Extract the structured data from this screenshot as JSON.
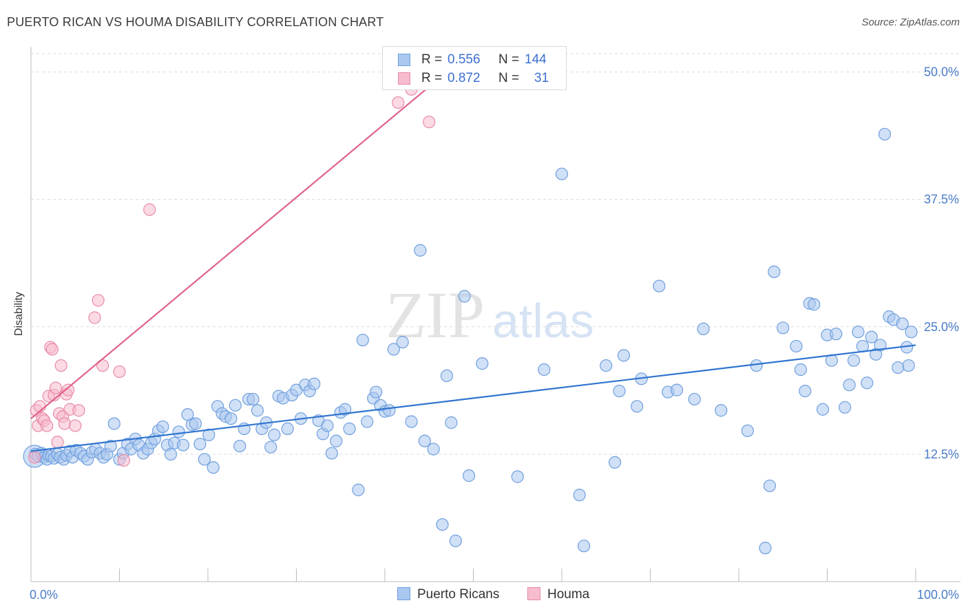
{
  "title": "PUERTO RICAN VS HOUMA DISABILITY CORRELATION CHART",
  "source": "Source: ZipAtlas.com",
  "colors": {
    "blue_fill": "#aac7ef",
    "blue_stroke": "#6f9fde",
    "blue_line": "#2f74d0",
    "pink_fill": "#f7bccd",
    "pink_stroke": "#e88aa6",
    "pink_line": "#e0618a",
    "axis_text": "#4a7cc9",
    "grid": "#d9d9d9"
  },
  "legend": {
    "rows": [
      {
        "r_label": "R =",
        "r_value": "0.556",
        "n_label": "N =",
        "n_value": "144",
        "series": "Puerto Ricans"
      },
      {
        "r_label": "R =",
        "r_value": "0.872",
        "n_label": "N =",
        "n_value": "31",
        "series": "Houma"
      }
    ]
  },
  "bottom_legend": [
    "Puerto Ricans",
    "Houma"
  ],
  "chart_data": {
    "type": "scatter",
    "title": "PUERTO RICAN VS HOUMA DISABILITY CORRELATION CHART",
    "xlabel": "",
    "ylabel": "Disability",
    "xlim": [
      0,
      100
    ],
    "ylim": [
      0,
      52
    ],
    "x_tick_labels": [
      "0.0%",
      "100.0%"
    ],
    "y_ticks": [
      12.5,
      25.0,
      37.5,
      50.0
    ],
    "y_tick_labels": [
      "12.5%",
      "25.0%",
      "37.5%",
      "50.0%"
    ],
    "grid": true,
    "legend_position": "top-center",
    "watermark": {
      "text1": "ZIP",
      "text2": "atlas"
    },
    "series": [
      {
        "name": "Puerto Ricans",
        "r": 0.556,
        "n": 144,
        "trend": {
          "x": [
            0,
            100
          ],
          "y": [
            12.8,
            23.2
          ]
        },
        "points": [
          [
            0.5,
            12.5
          ],
          [
            0.8,
            12.3
          ],
          [
            1.2,
            12.6
          ],
          [
            1.5,
            12.2
          ],
          [
            1.8,
            12.0
          ],
          [
            2.0,
            12.4
          ],
          [
            2.3,
            12.3
          ],
          [
            2.6,
            12.1
          ],
          [
            3.0,
            12.5
          ],
          [
            3.3,
            12.2
          ],
          [
            3.7,
            12.0
          ],
          [
            4.0,
            12.4
          ],
          [
            4.4,
            12.8
          ],
          [
            4.7,
            12.2
          ],
          [
            5.1,
            12.9
          ],
          [
            5.6,
            12.6
          ],
          [
            6.0,
            12.3
          ],
          [
            6.4,
            12.0
          ],
          [
            6.9,
            12.7
          ],
          [
            7.3,
            13.0
          ],
          [
            7.8,
            12.6
          ],
          [
            8.2,
            12.2
          ],
          [
            8.6,
            12.5
          ],
          [
            9.0,
            13.3
          ],
          [
            9.4,
            15.5
          ],
          [
            10.0,
            12.0
          ],
          [
            10.4,
            12.6
          ],
          [
            10.9,
            13.5
          ],
          [
            11.3,
            13.0
          ],
          [
            11.8,
            14.0
          ],
          [
            12.2,
            13.4
          ],
          [
            12.7,
            12.6
          ],
          [
            13.2,
            13.0
          ],
          [
            13.6,
            13.6
          ],
          [
            14.0,
            14.0
          ],
          [
            14.4,
            14.8
          ],
          [
            14.9,
            15.2
          ],
          [
            15.4,
            13.4
          ],
          [
            15.8,
            12.5
          ],
          [
            16.2,
            13.6
          ],
          [
            16.7,
            14.7
          ],
          [
            17.2,
            13.4
          ],
          [
            17.7,
            16.4
          ],
          [
            18.2,
            15.4
          ],
          [
            18.6,
            15.5
          ],
          [
            19.1,
            13.5
          ],
          [
            19.6,
            12.0
          ],
          [
            20.1,
            14.4
          ],
          [
            20.6,
            11.2
          ],
          [
            21.1,
            17.2
          ],
          [
            21.6,
            16.5
          ],
          [
            22.0,
            16.2
          ],
          [
            22.6,
            16.0
          ],
          [
            23.1,
            17.3
          ],
          [
            23.6,
            13.3
          ],
          [
            24.1,
            15.0
          ],
          [
            24.6,
            17.9
          ],
          [
            25.1,
            17.9
          ],
          [
            25.6,
            16.8
          ],
          [
            26.1,
            15.0
          ],
          [
            26.6,
            15.6
          ],
          [
            27.1,
            13.2
          ],
          [
            27.5,
            14.4
          ],
          [
            28.0,
            18.2
          ],
          [
            28.5,
            18.0
          ],
          [
            29.0,
            15.0
          ],
          [
            29.5,
            18.3
          ],
          [
            30.0,
            18.8
          ],
          [
            30.5,
            16.0
          ],
          [
            31.0,
            19.3
          ],
          [
            31.5,
            18.7
          ],
          [
            32.0,
            19.4
          ],
          [
            32.5,
            15.8
          ],
          [
            33.0,
            14.5
          ],
          [
            33.5,
            15.3
          ],
          [
            34.0,
            12.6
          ],
          [
            34.5,
            13.8
          ],
          [
            35.0,
            16.6
          ],
          [
            35.5,
            16.9
          ],
          [
            36.0,
            15.0
          ],
          [
            37.0,
            9.0
          ],
          [
            37.5,
            23.7
          ],
          [
            38.0,
            15.7
          ],
          [
            38.7,
            18.0
          ],
          [
            39.0,
            18.6
          ],
          [
            39.5,
            17.3
          ],
          [
            40.0,
            16.7
          ],
          [
            40.5,
            16.8
          ],
          [
            41.0,
            22.8
          ],
          [
            42.0,
            23.5
          ],
          [
            43.0,
            15.7
          ],
          [
            44.0,
            32.5
          ],
          [
            44.5,
            13.8
          ],
          [
            45.5,
            13.0
          ],
          [
            46.5,
            5.6
          ],
          [
            47.0,
            20.2
          ],
          [
            47.5,
            15.6
          ],
          [
            48.0,
            4.0
          ],
          [
            49.0,
            28.0
          ],
          [
            49.5,
            10.4
          ],
          [
            51.0,
            21.4
          ],
          [
            55.0,
            10.3
          ],
          [
            58.0,
            20.8
          ],
          [
            60.0,
            40.0
          ],
          [
            62.0,
            8.5
          ],
          [
            62.5,
            3.5
          ],
          [
            65.0,
            21.2
          ],
          [
            66.0,
            11.7
          ],
          [
            66.5,
            18.7
          ],
          [
            67.0,
            22.2
          ],
          [
            68.5,
            17.2
          ],
          [
            69.0,
            19.9
          ],
          [
            71.0,
            29.0
          ],
          [
            72.0,
            18.6
          ],
          [
            73.0,
            18.8
          ],
          [
            75.0,
            17.9
          ],
          [
            76.0,
            24.8
          ],
          [
            78.0,
            16.8
          ],
          [
            81.0,
            14.8
          ],
          [
            82.0,
            21.2
          ],
          [
            83.5,
            9.4
          ],
          [
            83.0,
            3.3
          ],
          [
            84.0,
            30.4
          ],
          [
            85.0,
            24.9
          ],
          [
            86.5,
            23.1
          ],
          [
            87.0,
            20.8
          ],
          [
            87.5,
            18.7
          ],
          [
            88.0,
            27.3
          ],
          [
            88.5,
            27.2
          ],
          [
            89.5,
            16.9
          ],
          [
            90.0,
            24.2
          ],
          [
            90.5,
            21.7
          ],
          [
            91.0,
            24.3
          ],
          [
            92.0,
            17.1
          ],
          [
            92.5,
            19.3
          ],
          [
            93.0,
            21.7
          ],
          [
            93.5,
            24.5
          ],
          [
            94.0,
            23.1
          ],
          [
            94.5,
            19.5
          ],
          [
            95.0,
            24.0
          ],
          [
            95.5,
            22.3
          ],
          [
            96.0,
            23.2
          ],
          [
            96.5,
            43.9
          ],
          [
            97.0,
            26.0
          ],
          [
            97.5,
            25.7
          ],
          [
            98.0,
            21.0
          ],
          [
            98.5,
            25.3
          ],
          [
            99.0,
            23.0
          ],
          [
            99.5,
            24.5
          ],
          [
            99.2,
            21.2
          ]
        ]
      },
      {
        "name": "Houma",
        "r": 0.872,
        "n": 31,
        "trend": {
          "x": [
            0,
            47
          ],
          "y": [
            16.0,
            50.0
          ]
        },
        "points": [
          [
            0.4,
            12.2
          ],
          [
            0.6,
            16.8
          ],
          [
            0.8,
            15.3
          ],
          [
            1.0,
            17.2
          ],
          [
            1.3,
            16.0
          ],
          [
            1.5,
            15.8
          ],
          [
            1.8,
            15.3
          ],
          [
            2.0,
            18.2
          ],
          [
            2.2,
            23.0
          ],
          [
            2.4,
            22.8
          ],
          [
            2.6,
            18.3
          ],
          [
            2.8,
            19.0
          ],
          [
            3.0,
            13.7
          ],
          [
            3.2,
            16.5
          ],
          [
            3.4,
            21.2
          ],
          [
            3.6,
            16.2
          ],
          [
            3.8,
            15.5
          ],
          [
            4.0,
            18.4
          ],
          [
            4.2,
            18.8
          ],
          [
            4.4,
            16.9
          ],
          [
            5.0,
            15.3
          ],
          [
            5.4,
            16.8
          ],
          [
            7.2,
            25.9
          ],
          [
            7.6,
            27.6
          ],
          [
            8.1,
            21.2
          ],
          [
            10.0,
            20.6
          ],
          [
            10.5,
            11.9
          ],
          [
            13.4,
            36.5
          ],
          [
            41.5,
            47.0
          ],
          [
            43.0,
            48.3
          ],
          [
            45.0,
            45.1
          ]
        ]
      }
    ]
  }
}
